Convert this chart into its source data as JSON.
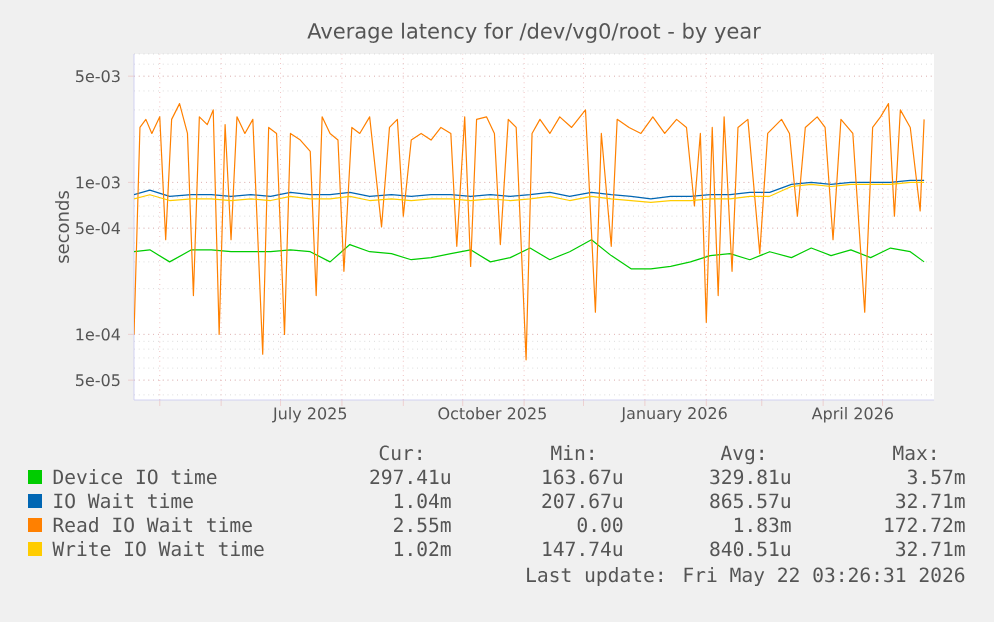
{
  "chart_data": {
    "type": "line",
    "title": "Average latency for /dev/vg0/root - by year",
    "ylabel": "seconds",
    "log": true,
    "grid": true,
    "legend": "bottom",
    "xlim": [
      "2025-04-18",
      "2026-05-27"
    ],
    "ylim": [
      3.7e-05,
      0.007
    ],
    "yticks": [
      {
        "value": 0.005,
        "label": "5e-03"
      },
      {
        "value": 0.001,
        "label": "1e-03"
      },
      {
        "value": 0.0005,
        "label": "5e-04"
      },
      {
        "value": 0.0001,
        "label": "1e-04"
      },
      {
        "value": 5e-05,
        "label": "5e-05"
      }
    ],
    "xticks": [
      {
        "value": "2025-05-01",
        "label": null
      },
      {
        "value": "2025-06-01",
        "label": null
      },
      {
        "value": "2025-07-01",
        "label": null
      },
      {
        "value": "2025-08-01",
        "label": null
      },
      {
        "value": "2025-09-01",
        "label": null
      },
      {
        "value": "2025-10-01",
        "label": null
      },
      {
        "value": "2025-11-01",
        "label": null
      },
      {
        "value": "2025-12-01",
        "label": null
      },
      {
        "value": "2026-01-01",
        "label": null
      },
      {
        "value": "2026-02-01",
        "label": null
      },
      {
        "value": "2026-03-01",
        "label": null
      },
      {
        "value": "2026-04-01",
        "label": null
      },
      {
        "value": "2026-05-01",
        "label": null
      },
      {
        "value": "2025-07-16",
        "label": "July 2025"
      },
      {
        "value": "2025-10-16",
        "label": "October 2025"
      },
      {
        "value": "2026-01-16",
        "label": "January 2026"
      },
      {
        "value": "2026-04-16",
        "label": "April 2026"
      }
    ],
    "x": [
      "2025-04-18",
      "2025-04-26",
      "2025-05-06",
      "2025-05-17",
      "2025-05-27",
      "2025-06-06",
      "2025-06-16",
      "2025-06-26",
      "2025-07-06",
      "2025-07-16",
      "2025-07-26",
      "2025-08-05",
      "2025-08-15",
      "2025-08-26",
      "2025-09-05",
      "2025-09-15",
      "2025-09-25",
      "2025-10-05",
      "2025-10-15",
      "2025-10-25",
      "2025-11-04",
      "2025-11-14",
      "2025-11-24",
      "2025-12-05",
      "2025-12-15",
      "2025-12-25",
      "2026-01-04",
      "2026-01-14",
      "2026-01-24",
      "2026-02-03",
      "2026-02-13",
      "2026-02-23",
      "2026-03-05",
      "2026-03-16",
      "2026-03-26",
      "2026-04-05",
      "2026-04-15",
      "2026-04-25",
      "2026-05-05",
      "2026-05-15",
      "2026-05-22"
    ],
    "series": [
      {
        "name": "Device IO time",
        "color": "#00cc00",
        "values": [
          0.00035,
          0.00036,
          0.0003,
          0.00036,
          0.00036,
          0.00035,
          0.00035,
          0.00035,
          0.00036,
          0.00035,
          0.0003,
          0.00039,
          0.00035,
          0.00034,
          0.00031,
          0.00032,
          0.00034,
          0.00036,
          0.0003,
          0.00032,
          0.00037,
          0.00031,
          0.00035,
          0.00042,
          0.00033,
          0.00027,
          0.00027,
          0.00028,
          0.0003,
          0.00033,
          0.00034,
          0.00031,
          0.00035,
          0.00032,
          0.00037,
          0.00033,
          0.00036,
          0.00032,
          0.00037,
          0.00035,
          0.0003
        ]
      },
      {
        "name": "IO Wait time",
        "color": "#0066b3",
        "values": [
          0.00083,
          0.00089,
          0.00081,
          0.00083,
          0.00083,
          0.00081,
          0.00083,
          0.00081,
          0.00086,
          0.00083,
          0.00083,
          0.00086,
          0.00081,
          0.00083,
          0.00081,
          0.00083,
          0.00083,
          0.00081,
          0.00083,
          0.00081,
          0.00083,
          0.00086,
          0.00081,
          0.00086,
          0.00083,
          0.00081,
          0.00078,
          0.00081,
          0.00081,
          0.00083,
          0.00083,
          0.00086,
          0.00086,
          0.00097,
          0.001,
          0.00097,
          0.001,
          0.001,
          0.001,
          0.00103,
          0.00103
        ]
      },
      {
        "name": "Read IO Wait time",
        "color": "#ff8000",
        "x": [
          "2025-04-18",
          "2025-04-21",
          "2025-04-24",
          "2025-04-27",
          "2025-05-01",
          "2025-05-04",
          "2025-05-07",
          "2025-05-11",
          "2025-05-15",
          "2025-05-18",
          "2025-05-21",
          "2025-05-25",
          "2025-05-28",
          "2025-05-31",
          "2025-06-03",
          "2025-06-06",
          "2025-06-09",
          "2025-06-13",
          "2025-06-17",
          "2025-06-22",
          "2025-06-25",
          "2025-06-29",
          "2025-07-03",
          "2025-07-06",
          "2025-07-11",
          "2025-07-16",
          "2025-07-19",
          "2025-07-22",
          "2025-07-26",
          "2025-07-30",
          "2025-08-02",
          "2025-08-06",
          "2025-08-10",
          "2025-08-15",
          "2025-08-21",
          "2025-08-25",
          "2025-08-29",
          "2025-09-01",
          "2025-09-05",
          "2025-09-10",
          "2025-09-15",
          "2025-09-20",
          "2025-09-25",
          "2025-09-28",
          "2025-10-02",
          "2025-10-05",
          "2025-10-08",
          "2025-10-13",
          "2025-10-17",
          "2025-10-20",
          "2025-10-24",
          "2025-10-28",
          "2025-11-02",
          "2025-11-05",
          "2025-11-09",
          "2025-11-14",
          "2025-11-19",
          "2025-11-25",
          "2025-12-02",
          "2025-12-07",
          "2025-12-10",
          "2025-12-15",
          "2025-12-18",
          "2025-12-24",
          "2025-12-30",
          "2026-01-05",
          "2026-01-11",
          "2026-01-17",
          "2026-01-22",
          "2026-01-26",
          "2026-01-29",
          "2026-02-01",
          "2026-02-04",
          "2026-02-07",
          "2026-02-10",
          "2026-02-14",
          "2026-02-17",
          "2026-02-22",
          "2026-02-28",
          "2026-03-04",
          "2026-03-11",
          "2026-03-15",
          "2026-03-19",
          "2026-03-23",
          "2026-03-29",
          "2026-04-02",
          "2026-04-06",
          "2026-04-10",
          "2026-04-16",
          "2026-04-22",
          "2026-04-26",
          "2026-04-30",
          "2026-05-04",
          "2026-05-07",
          "2026-05-10",
          "2026-05-15",
          "2026-05-20",
          "2026-05-22"
        ],
        "values": [
          0.0001,
          0.0023,
          0.0026,
          0.0021,
          0.0027,
          0.00042,
          0.0026,
          0.0033,
          0.0021,
          0.00018,
          0.0027,
          0.0024,
          0.003,
          0.0001,
          0.0024,
          0.00042,
          0.0027,
          0.0021,
          0.0026,
          7.4e-05,
          0.0023,
          0.0021,
          0.0001,
          0.0021,
          0.0019,
          0.0016,
          0.00018,
          0.0027,
          0.0021,
          0.0019,
          0.00026,
          0.0023,
          0.0021,
          0.0027,
          0.00051,
          0.0023,
          0.0026,
          0.0006,
          0.0019,
          0.0021,
          0.0019,
          0.0023,
          0.0021,
          0.00038,
          0.0027,
          0.00028,
          0.0026,
          0.0027,
          0.0021,
          0.00039,
          0.0026,
          0.0023,
          6.8e-05,
          0.0021,
          0.0026,
          0.0021,
          0.0027,
          0.0023,
          0.003,
          0.00014,
          0.0021,
          0.00038,
          0.0026,
          0.0023,
          0.0021,
          0.0027,
          0.0021,
          0.0026,
          0.0023,
          0.0007,
          0.0021,
          0.00012,
          0.0023,
          0.00018,
          0.0027,
          0.00026,
          0.0023,
          0.0026,
          0.00034,
          0.0021,
          0.0026,
          0.0021,
          0.0006,
          0.0023,
          0.0027,
          0.0023,
          0.00042,
          0.0026,
          0.0021,
          0.00014,
          0.0023,
          0.0027,
          0.0033,
          0.0006,
          0.003,
          0.0023,
          0.00065,
          0.0026
        ]
      },
      {
        "name": "Write IO Wait time",
        "color": "#ffcc00",
        "values": [
          0.00078,
          0.00083,
          0.00076,
          0.00078,
          0.00078,
          0.00076,
          0.00078,
          0.00076,
          0.00081,
          0.00078,
          0.00078,
          0.00081,
          0.00076,
          0.00078,
          0.00076,
          0.00078,
          0.00078,
          0.00076,
          0.00078,
          0.00076,
          0.00078,
          0.00081,
          0.00076,
          0.00081,
          0.00078,
          0.00076,
          0.00074,
          0.00076,
          0.00076,
          0.00078,
          0.00078,
          0.00081,
          0.00081,
          0.00094,
          0.00097,
          0.00094,
          0.00097,
          0.00097,
          0.00097,
          0.001,
          0.001
        ]
      }
    ],
    "annotations": [
      "Cur:",
      "Min:",
      "Avg:",
      "Max:",
      "297.41u",
      "163.67u",
      "329.81u",
      "3.57m",
      "1.04m",
      "207.67u",
      "865.57u",
      "32.71m",
      "2.55m",
      "0.00",
      "1.83m",
      "172.72m",
      "1.02m",
      "147.74u",
      "840.51u",
      "32.71m",
      "Last update: Fri May 22 03:26:31 2026"
    ]
  }
}
